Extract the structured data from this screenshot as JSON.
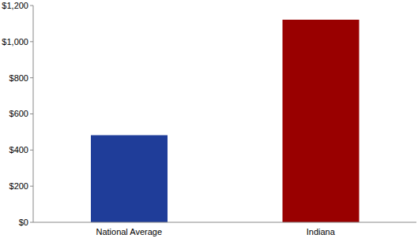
{
  "chart_data": {
    "type": "bar",
    "categories": [
      "National Average",
      "Indiana"
    ],
    "values": [
      482,
      1122
    ],
    "colors": [
      "#1f3d99",
      "#990000"
    ],
    "ylim": [
      0,
      1200
    ],
    "yticks": [
      {
        "value": 0,
        "label": "$0"
      },
      {
        "value": 200,
        "label": "$200"
      },
      {
        "value": 400,
        "label": "$400"
      },
      {
        "value": 600,
        "label": "$600"
      },
      {
        "value": 800,
        "label": "$800"
      },
      {
        "value": 1000,
        "label": "$1,000"
      },
      {
        "value": 1200,
        "label": "$1,200"
      }
    ],
    "grid": false
  }
}
